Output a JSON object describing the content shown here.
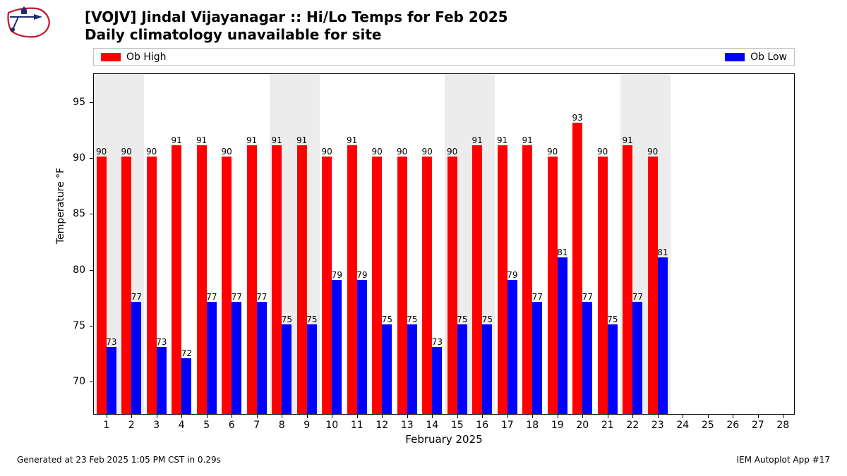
{
  "logo": {
    "name": "iem-logo",
    "outline_color": "#c4162b",
    "accent_color": "#1a2f6e"
  },
  "title_line1": "[VOJV] Jindal Vijayanagar :: Hi/Lo Temps for Feb 2025",
  "title_line2": "Daily climatology unavailable for site",
  "title_fontsize": 20,
  "legend": {
    "high_label": "Ob High",
    "low_label": "Ob Low",
    "high_color": "#ff0000",
    "low_color": "#0000ff",
    "border_color": "#bfbfbf",
    "fontsize": 14
  },
  "chart": {
    "type": "bar",
    "background_color": "#ffffff",
    "weekend_band_color": "#ececec",
    "border_color": "#000000",
    "x_start": 0.5,
    "x_end": 28.5,
    "ylim": [
      67,
      97.5
    ],
    "yticks": [
      70,
      75,
      80,
      85,
      90,
      95
    ],
    "days": [
      1,
      2,
      3,
      4,
      5,
      6,
      7,
      8,
      9,
      10,
      11,
      12,
      13,
      14,
      15,
      16,
      17,
      18,
      19,
      20,
      21,
      22,
      23,
      24,
      25,
      26,
      27,
      28
    ],
    "highs": [
      90,
      90,
      90,
      91,
      91,
      90,
      91,
      91,
      91,
      90,
      91,
      90,
      90,
      90,
      90,
      91,
      91,
      91,
      90,
      93,
      90,
      91,
      90,
      null,
      null,
      null,
      null,
      null
    ],
    "lows": [
      73,
      77,
      73,
      72,
      77,
      77,
      77,
      75,
      75,
      79,
      79,
      75,
      75,
      73,
      75,
      75,
      79,
      77,
      81,
      77,
      75,
      77,
      81,
      null,
      null,
      null,
      null,
      null
    ],
    "weekend_days": [
      1,
      2,
      8,
      9,
      15,
      16,
      22,
      23
    ],
    "bar_half_width": 0.4,
    "high_color": "#ff0000",
    "low_color": "#0000ff",
    "label_fontsize": 12,
    "tick_fontsize": 14,
    "ylabel": "Temperature °F",
    "xlabel": "February 2025"
  },
  "footer_left": "Generated at 23 Feb 2025 1:05 PM CST in 0.29s",
  "footer_right": "IEM Autoplot App #17",
  "footer_fontsize": 12
}
